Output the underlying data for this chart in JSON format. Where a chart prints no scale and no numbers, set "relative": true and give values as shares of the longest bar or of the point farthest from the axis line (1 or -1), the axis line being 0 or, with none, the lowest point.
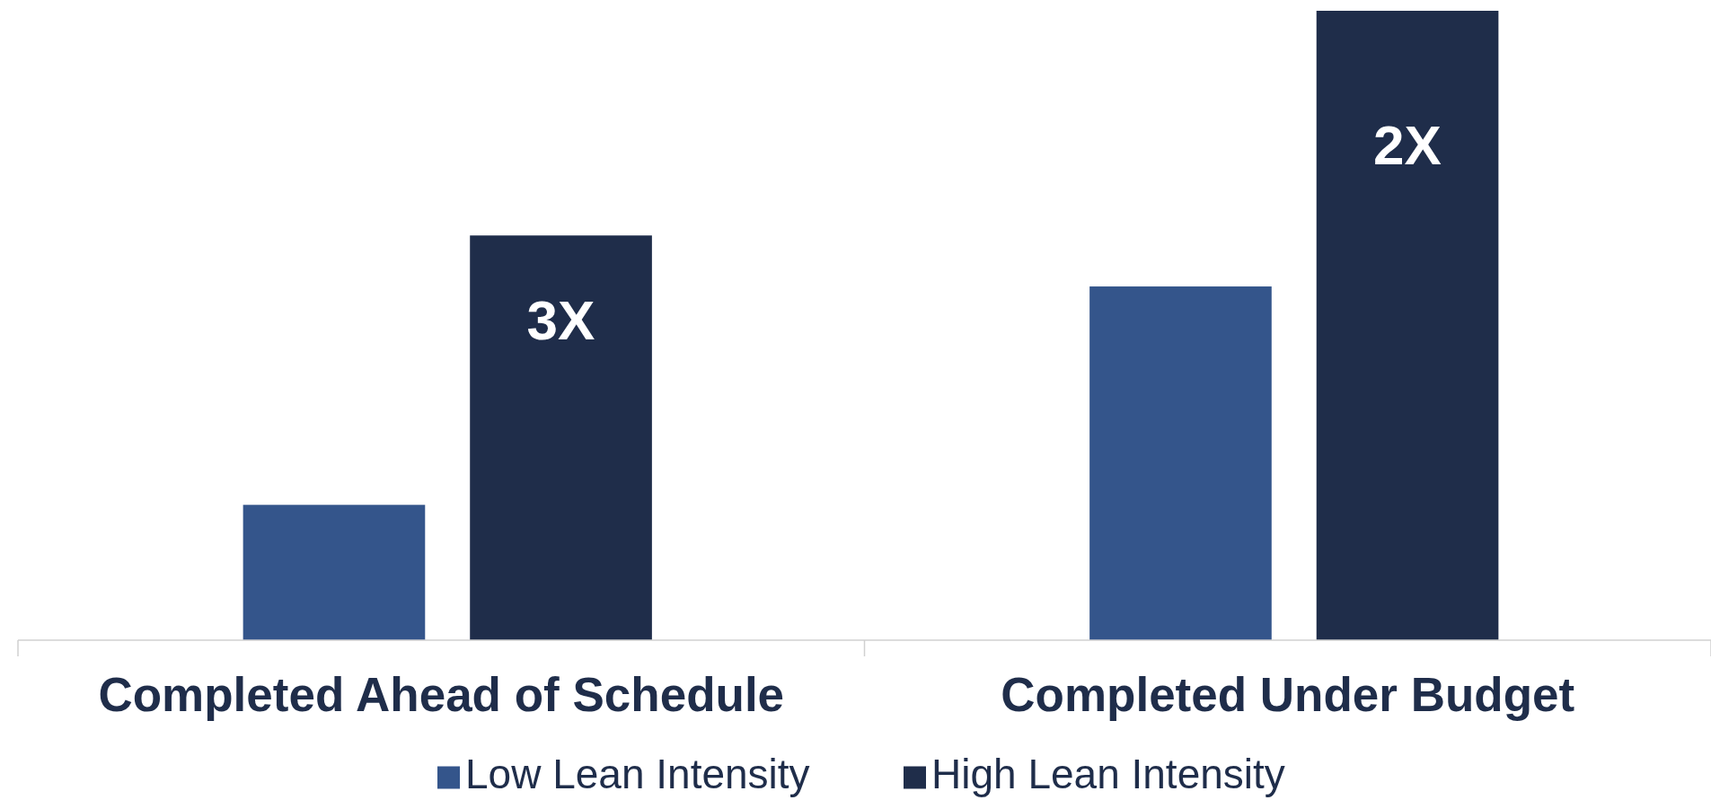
{
  "chart_data": {
    "type": "bar",
    "relative": true,
    "categories": [
      "Completed Ahead of Schedule",
      "Completed Under Budget"
    ],
    "series": [
      {
        "name": "Low Lean Intensity",
        "color": "#34558b",
        "values": [
          0.215,
          0.562
        ]
      },
      {
        "name": "High Lean Intensity",
        "color": "#1f2d4a",
        "values": [
          0.643,
          1
        ]
      }
    ],
    "annotations": [
      "3X",
      "2X"
    ],
    "legend": "bottom"
  }
}
